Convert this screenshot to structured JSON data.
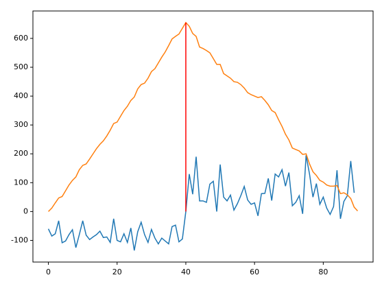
{
  "chart_data": {
    "type": "line",
    "series": [
      {
        "color": "#1f77b4",
        "x": [
          0,
          1,
          2,
          3,
          4,
          5,
          6,
          7,
          8,
          9,
          10,
          11,
          12,
          13,
          14,
          15,
          16,
          17,
          18,
          19,
          20,
          21,
          22,
          23,
          24,
          25,
          26,
          27,
          28,
          29,
          30,
          31,
          32,
          33,
          34,
          35,
          36,
          37,
          38,
          39,
          40,
          41,
          42,
          43,
          44,
          45,
          46,
          47,
          48,
          49,
          50,
          51,
          52,
          53,
          54,
          55,
          56,
          57,
          58,
          59,
          60,
          61,
          62,
          63,
          64,
          65,
          66,
          67,
          68,
          69,
          70,
          71,
          72,
          73,
          74,
          75,
          76,
          77,
          78,
          79,
          80,
          81,
          82,
          83,
          84,
          85,
          86,
          87,
          88,
          89
        ],
        "values": [
          -60,
          -85,
          -77,
          -32,
          -108,
          -102,
          -80,
          -63,
          -125,
          -80,
          -32,
          -82,
          -97,
          -88,
          -80,
          -68,
          -90,
          -88,
          -107,
          -25,
          -100,
          -105,
          -77,
          -107,
          -57,
          -135,
          -70,
          -37,
          -80,
          -107,
          -62,
          -92,
          -112,
          -92,
          -102,
          -112,
          -52,
          -47,
          -105,
          -95,
          0,
          130,
          60,
          190,
          37,
          37,
          32,
          95,
          105,
          0,
          163,
          50,
          37,
          57,
          5,
          27,
          55,
          87,
          40,
          25,
          30,
          -15,
          62,
          63,
          115,
          38,
          130,
          120,
          145,
          88,
          135,
          20,
          32,
          55,
          -8,
          195,
          130,
          50,
          97,
          25,
          50,
          12,
          -10,
          17,
          143,
          -25,
          35,
          55,
          175,
          65
        ]
      },
      {
        "color": "#ff7f0e",
        "x": [
          0,
          1,
          2,
          3,
          4,
          5,
          6,
          7,
          8,
          9,
          10,
          11,
          12,
          13,
          14,
          15,
          16,
          17,
          18,
          19,
          20,
          21,
          22,
          23,
          24,
          25,
          26,
          27,
          28,
          29,
          30,
          31,
          32,
          33,
          34,
          35,
          36,
          37,
          38,
          39,
          40,
          41,
          42,
          43,
          44,
          45,
          46,
          47,
          48,
          49,
          50,
          51,
          52,
          53,
          54,
          55,
          56,
          57,
          58,
          59,
          60,
          61,
          62,
          63,
          64,
          65,
          66,
          67,
          68,
          69,
          70,
          71,
          72,
          73,
          74,
          75,
          76,
          77,
          78,
          79,
          80,
          81,
          82,
          83,
          84,
          85,
          86,
          87,
          88,
          89,
          90
        ],
        "values": [
          0,
          12,
          30,
          47,
          52,
          72,
          92,
          108,
          120,
          145,
          160,
          165,
          182,
          200,
          218,
          233,
          245,
          262,
          282,
          305,
          310,
          330,
          350,
          365,
          385,
          397,
          425,
          440,
          445,
          462,
          485,
          495,
          515,
          535,
          553,
          575,
          598,
          607,
          615,
          635,
          655,
          642,
          617,
          607,
          570,
          565,
          558,
          550,
          530,
          510,
          510,
          478,
          470,
          462,
          450,
          448,
          440,
          428,
          412,
          405,
          400,
          395,
          398,
          385,
          370,
          350,
          343,
          318,
          295,
          268,
          248,
          220,
          215,
          210,
          198,
          200,
          165,
          138,
          125,
          108,
          102,
          92,
          88,
          88,
          90,
          62,
          65,
          58,
          45,
          15,
          2
        ]
      },
      {
        "color": "red",
        "x": [
          40,
          40
        ],
        "values": [
          0,
          655
        ]
      }
    ],
    "xlim": [
      -4.5,
      94.5
    ],
    "xticks": [
      0,
      20,
      40,
      60,
      80
    ],
    "ylim": [
      -175,
      695
    ],
    "yticks": [
      -100,
      0,
      100,
      200,
      300,
      400,
      500,
      600
    ]
  }
}
